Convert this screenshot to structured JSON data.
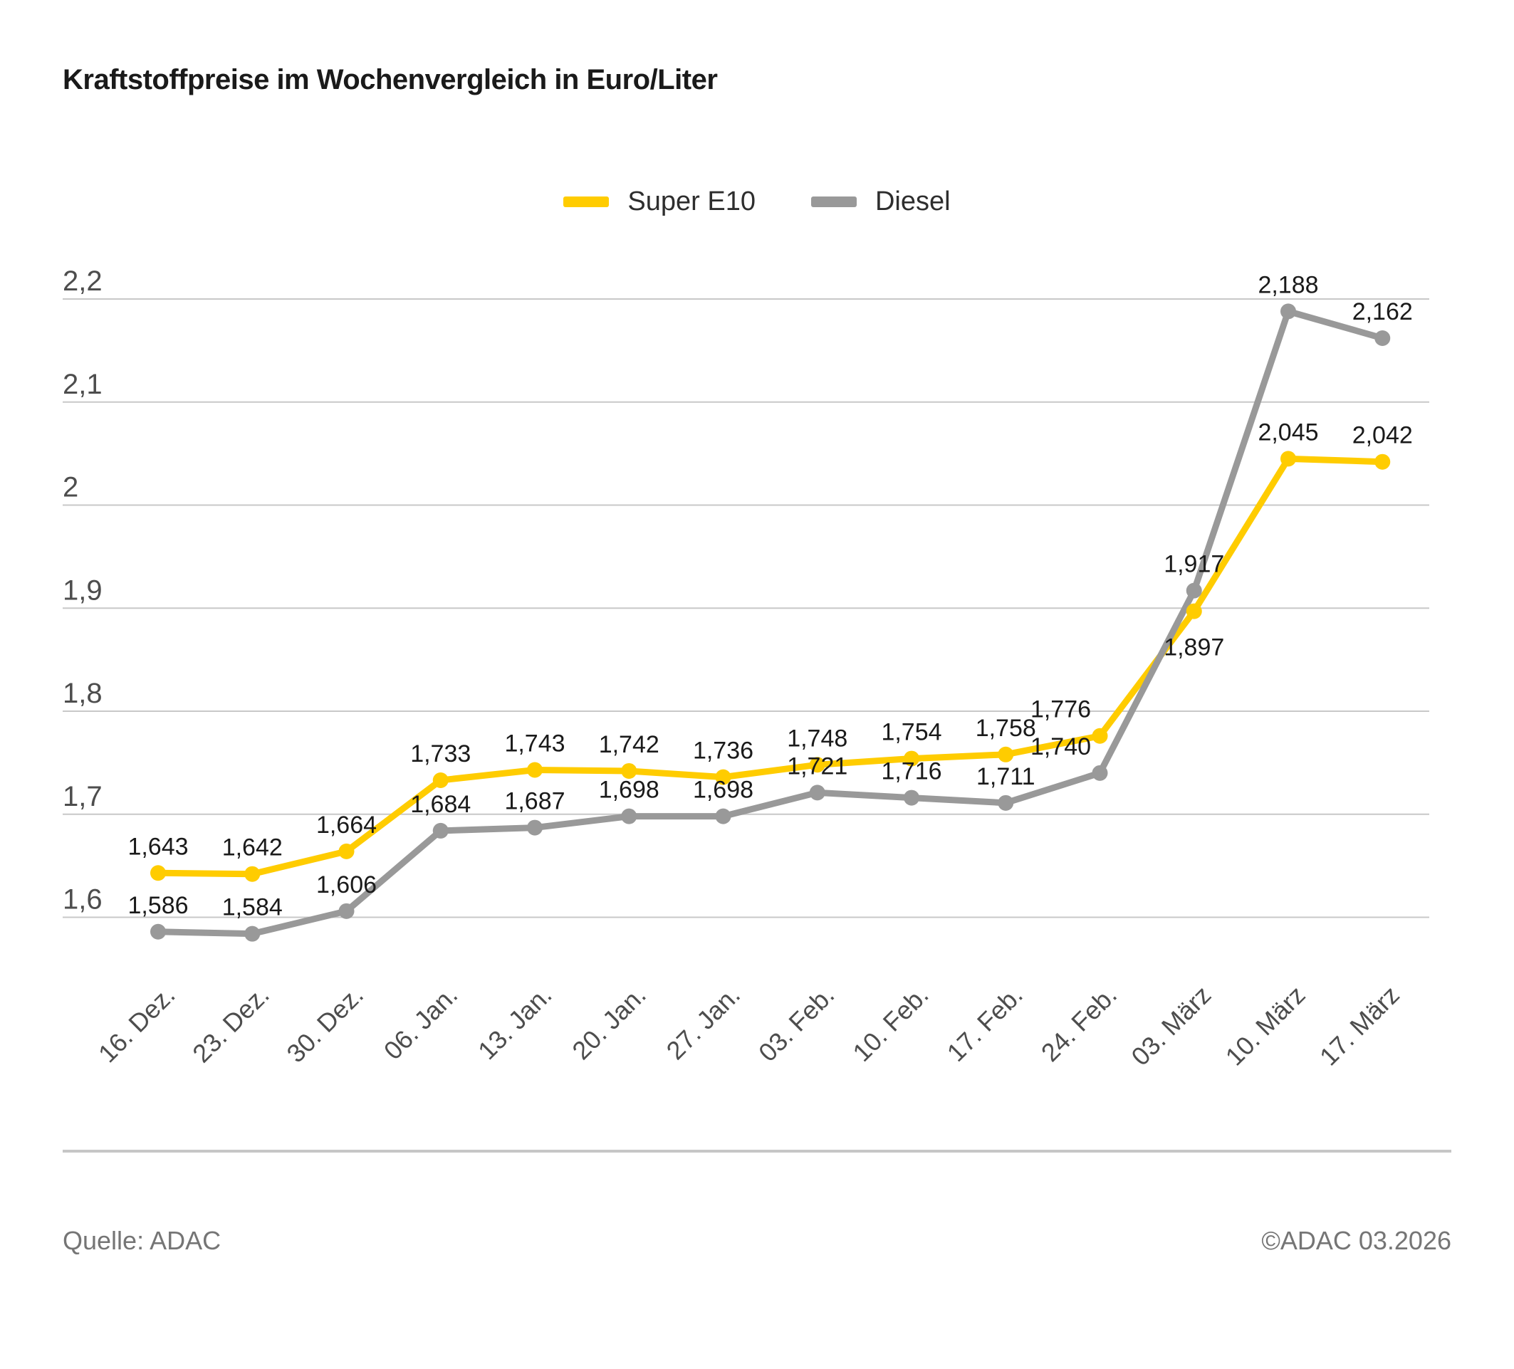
{
  "header": {
    "title": "Kraftstoffpreise im Wochenvergleich in Euro/Liter"
  },
  "footer": {
    "source": "Quelle: ADAC",
    "copyright": "©ADAC 03.2026"
  },
  "colors": {
    "grid": "#c8c8c8",
    "axis_text": "#4d4d4d",
    "data_label": "#1a1a1a",
    "divider": "#c6c6c6",
    "footer_text": "#757575"
  },
  "chart_data": {
    "type": "line",
    "title": "Kraftstoffpreise im Wochenvergleich in Euro/Liter",
    "unit": "Euro/Liter",
    "grid": true,
    "legend_position": "top",
    "xlabel": "",
    "ylabel": "",
    "ylim": [
      1.55,
      2.25
    ],
    "categories": [
      "16. Dez.",
      "23. Dez.",
      "30. Dez.",
      "06. Jan.",
      "13. Jan.",
      "20. Jan.",
      "27. Jan.",
      "03. Feb.",
      "10. Feb.",
      "17. Feb.",
      "24. Feb.",
      "03. März",
      "10. März",
      "17. März"
    ],
    "y_ticks": [
      {
        "v": 2.2,
        "label": "2,2"
      },
      {
        "v": 2.1,
        "label": "2,1"
      },
      {
        "v": 2.0,
        "label": "2"
      },
      {
        "v": 1.9,
        "label": "1,9"
      },
      {
        "v": 1.8,
        "label": "1,8"
      },
      {
        "v": 1.7,
        "label": "1,7"
      },
      {
        "v": 1.6,
        "label": "1,6"
      }
    ],
    "series": [
      {
        "name": "Super E10",
        "color": "#FFCC00",
        "values": [
          1.643,
          1.642,
          1.664,
          1.733,
          1.743,
          1.742,
          1.736,
          1.748,
          1.754,
          1.758,
          1.776,
          1.897,
          2.045,
          2.042
        ],
        "labels": [
          "1,643",
          "1,642",
          "1,664",
          "1,733",
          "1,743",
          "1,742",
          "1,736",
          "1,748",
          "1,754",
          "1,758",
          "1,776",
          "1,897",
          "2,045",
          "2,042"
        ],
        "label_overrides": {
          "10": {
            "dx": -55
          },
          "11": {
            "position": "below"
          }
        }
      },
      {
        "name": "Diesel",
        "color": "#999999",
        "values": [
          1.586,
          1.584,
          1.606,
          1.684,
          1.687,
          1.698,
          1.698,
          1.721,
          1.716,
          1.711,
          1.74,
          1.917,
          2.188,
          2.162
        ],
        "labels": [
          "1,586",
          "1,584",
          "1,606",
          "1,684",
          "1,687",
          "1,698",
          "1,698",
          "1,721",
          "1,716",
          "1,711",
          "1,740",
          "1,917",
          "2,188",
          "2,162"
        ],
        "label_overrides": {
          "10": {
            "dx": -55
          }
        }
      }
    ]
  }
}
